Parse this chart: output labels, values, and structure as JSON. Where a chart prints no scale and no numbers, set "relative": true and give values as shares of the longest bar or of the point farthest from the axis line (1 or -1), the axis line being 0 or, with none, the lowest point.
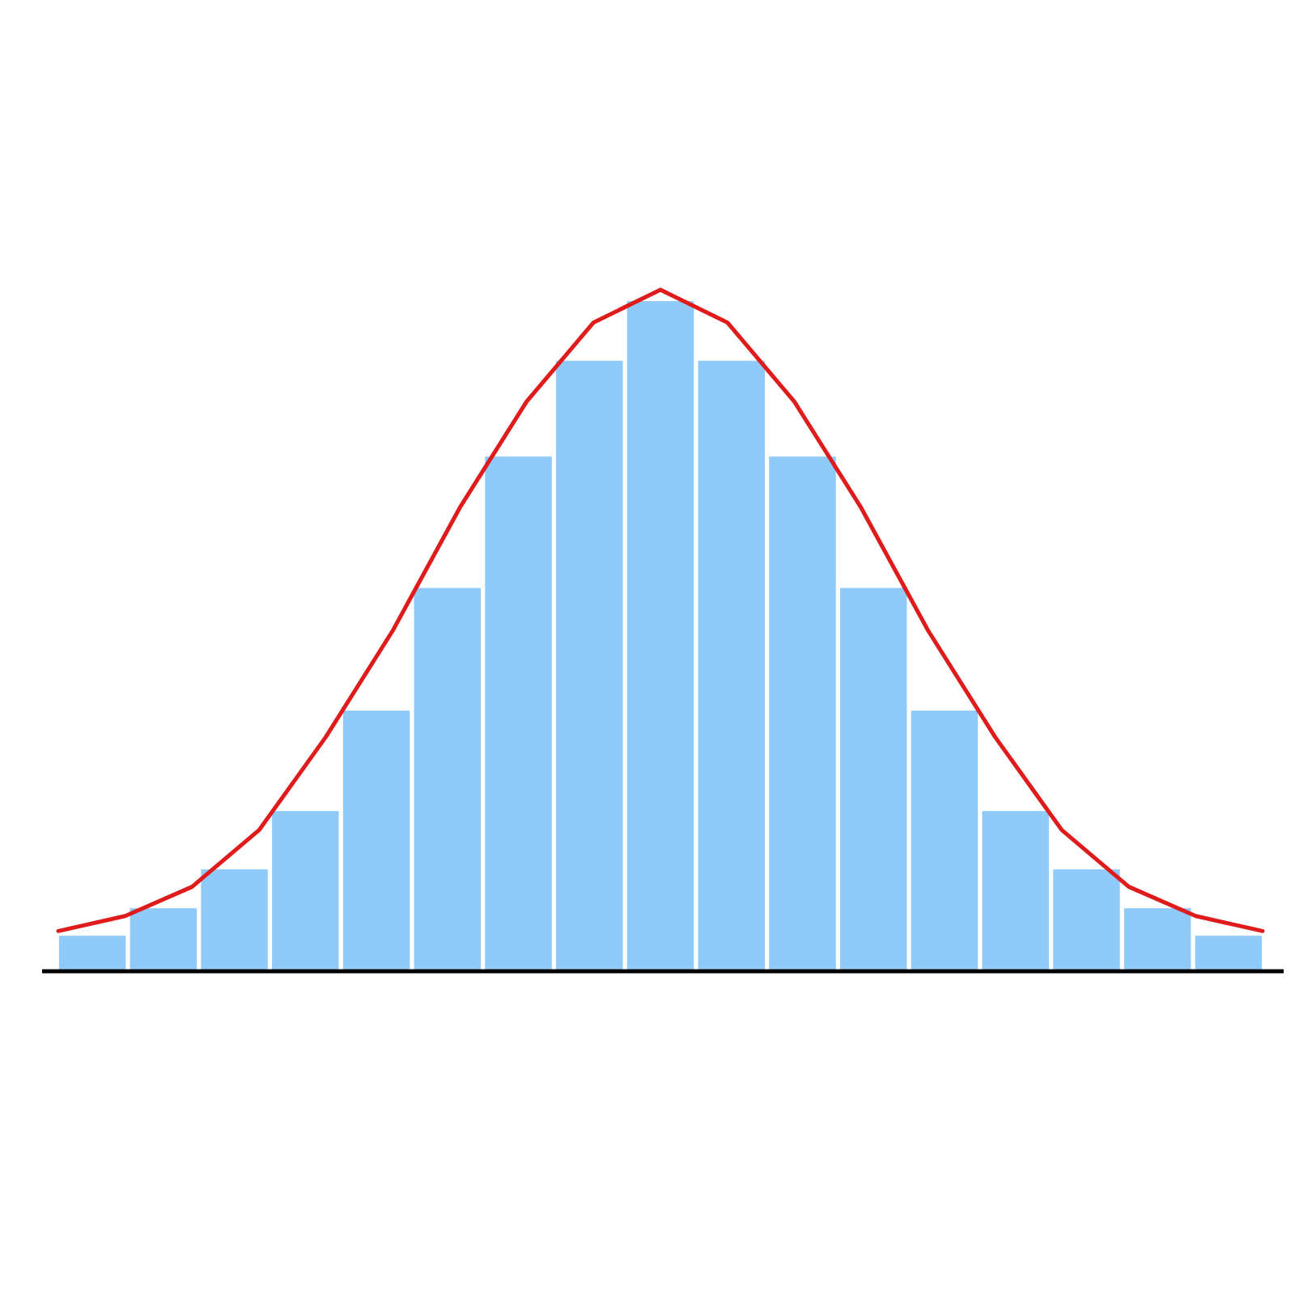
{
  "chart_data": [
    {
      "type": "bar",
      "relative": true,
      "color": "#90caf9",
      "categories": [
        null,
        null,
        null,
        null,
        null,
        null,
        null,
        null,
        null,
        null,
        null,
        null,
        null,
        null,
        null,
        null,
        null
      ],
      "values": [
        0.053,
        0.094,
        0.152,
        0.239,
        0.389,
        0.572,
        0.768,
        0.911,
        1,
        0.911,
        0.768,
        0.572,
        0.389,
        0.239,
        0.152,
        0.094,
        0.053
      ]
    },
    {
      "type": "line",
      "relative": true,
      "color": "#e01b1b",
      "categories": [
        null,
        null,
        null,
        null,
        null,
        null,
        null,
        null,
        null,
        null,
        null,
        null,
        null,
        null,
        null,
        null,
        null,
        null,
        null
      ],
      "values": [
        0.059,
        0.081,
        0.124,
        0.207,
        0.344,
        0.5,
        0.68,
        0.836,
        0.952,
        1,
        0.952,
        0.836,
        0.68,
        0.5,
        0.344,
        0.207,
        0.124,
        0.081,
        0.059
      ]
    }
  ]
}
